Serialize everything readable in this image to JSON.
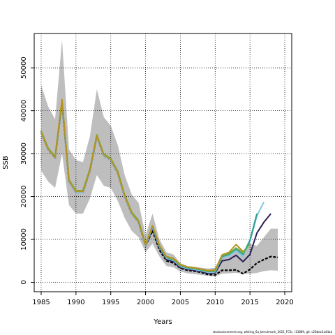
{
  "chart_data": {
    "type": "line",
    "title": "",
    "xlabel": "Years",
    "ylabel": "SSB",
    "xlim": [
      1984,
      2021
    ],
    "ylim": [
      -2200,
      58000
    ],
    "x_ticks": [
      1985,
      1990,
      1995,
      2000,
      2005,
      2010,
      2015,
      2020
    ],
    "y_ticks": [
      0,
      10000,
      20000,
      30000,
      40000,
      50000
    ],
    "grid": true,
    "grid_style": "dotted",
    "band": {
      "color": "#bebebe",
      "years": [
        1985,
        1986,
        1987,
        1988,
        1989,
        1990,
        1991,
        1992,
        1993,
        1994,
        1995,
        1996,
        1997,
        1998,
        1999,
        2000,
        2001,
        2002,
        2003,
        2004,
        2005,
        2006,
        2007,
        2008,
        2009,
        2010,
        2011,
        2012,
        2013,
        2014,
        2015,
        2016,
        2017,
        2018,
        2019
      ],
      "upper": [
        46000,
        41000,
        38000,
        56500,
        31000,
        28500,
        28000,
        34000,
        45000,
        38500,
        36500,
        32000,
        25000,
        20500,
        18500,
        11000,
        16000,
        10000,
        7000,
        6500,
        4500,
        3800,
        3600,
        3400,
        3200,
        3400,
        6500,
        7000,
        8000,
        7500,
        9000,
        8500,
        10500,
        12500,
        12500
      ],
      "lower": [
        26000,
        23500,
        22000,
        30000,
        18000,
        16000,
        16000,
        19500,
        25000,
        22500,
        22000,
        19000,
        15000,
        12000,
        10500,
        7000,
        9000,
        6000,
        3800,
        3500,
        2500,
        2100,
        1900,
        1700,
        1500,
        1400,
        2000,
        2100,
        2200,
        2000,
        2000,
        2200,
        2600,
        2800,
        2700
      ]
    },
    "series": [
      {
        "color": "#000000",
        "dashed": true,
        "years": [
          1985,
          1986,
          1987,
          1988,
          1989,
          1990,
          1991,
          1992,
          1993,
          1994,
          1995,
          1996,
          1997,
          1998,
          1999,
          2000,
          2001,
          2002,
          2003,
          2004,
          2005,
          2006,
          2007,
          2008,
          2009,
          2010,
          2011,
          2012,
          2013,
          2014,
          2015,
          2016,
          2017,
          2018,
          2019
        ],
        "values": [
          35000,
          31000,
          29000,
          42000,
          23500,
          21000,
          21000,
          26000,
          34000,
          29500,
          28500,
          25500,
          20000,
          16000,
          14000,
          8500,
          12000,
          7500,
          5000,
          4500,
          3300,
          2800,
          2600,
          2300,
          1800,
          1700,
          2800,
          2800,
          2900,
          2000,
          3000,
          4500,
          5300,
          6000,
          5800
        ]
      },
      {
        "color": "#2c1f5a",
        "years": [
          1985,
          1986,
          1987,
          1988,
          1989,
          1990,
          1991,
          1992,
          1993,
          1994,
          1995,
          1996,
          1997,
          1998,
          1999,
          2000,
          2001,
          2002,
          2003,
          2004,
          2005,
          2006,
          2007,
          2008,
          2009,
          2010,
          2011,
          2012,
          2013,
          2014,
          2015,
          2016,
          2017,
          2018
        ],
        "values": [
          35000,
          31000,
          29000,
          42000,
          23500,
          21000,
          21000,
          26000,
          34000,
          29500,
          28500,
          25500,
          20000,
          16000,
          14000,
          8500,
          12500,
          8000,
          5300,
          4800,
          3500,
          3000,
          2800,
          2500,
          2100,
          2200,
          5000,
          5300,
          6300,
          4800,
          6500,
          11500,
          14000,
          16000
        ]
      },
      {
        "color": "#7ec8e3",
        "years": [
          1985,
          1986,
          1987,
          1988,
          1989,
          1990,
          1991,
          1992,
          1993,
          1994,
          1995,
          1996,
          1997,
          1998,
          1999,
          2000,
          2001,
          2002,
          2003,
          2004,
          2005,
          2006,
          2007,
          2008,
          2009,
          2010,
          2011,
          2012,
          2013,
          2014,
          2015,
          2016,
          2017
        ],
        "values": [
          35000,
          31000,
          29000,
          42000,
          23500,
          21000,
          21000,
          26000,
          34000,
          29500,
          28500,
          25500,
          20000,
          16000,
          14000,
          8500,
          12800,
          8200,
          5600,
          5100,
          3700,
          3200,
          3000,
          2700,
          2300,
          2400,
          5800,
          6200,
          7400,
          6000,
          9500,
          15500,
          18700
        ]
      },
      {
        "color": "#2e9e8f",
        "years": [
          1985,
          1986,
          1987,
          1988,
          1989,
          1990,
          1991,
          1992,
          1993,
          1994,
          1995,
          1996,
          1997,
          1998,
          1999,
          2000,
          2001,
          2002,
          2003,
          2004,
          2005,
          2006,
          2007,
          2008,
          2009,
          2010,
          2011,
          2012,
          2013,
          2014,
          2015,
          2016
        ],
        "values": [
          35200,
          31200,
          29200,
          42300,
          23800,
          21300,
          21300,
          26300,
          34300,
          29800,
          28800,
          25800,
          20300,
          16300,
          14300,
          8800,
          13000,
          8400,
          5800,
          5300,
          3900,
          3400,
          3200,
          2900,
          2500,
          2600,
          6000,
          6500,
          7800,
          6500,
          9800,
          16000
        ]
      },
      {
        "color": "#6ab04c",
        "years": [
          1985,
          1986,
          1987,
          1988,
          1989,
          1990,
          1991,
          1992,
          1993,
          1994,
          1995,
          1996,
          1997,
          1998,
          1999,
          2000,
          2001,
          2002,
          2003,
          2004,
          2005,
          2006,
          2007,
          2008,
          2009,
          2010,
          2011,
          2012,
          2013,
          2014,
          2015
        ],
        "values": [
          35300,
          31300,
          29300,
          42400,
          23900,
          21400,
          21400,
          26400,
          34400,
          29900,
          28900,
          25900,
          20400,
          16400,
          14400,
          8900,
          13100,
          8500,
          5900,
          5400,
          4000,
          3500,
          3300,
          3000,
          2600,
          2700,
          6200,
          6700,
          8000,
          6800,
          9000
        ]
      },
      {
        "color": "#b8921e",
        "years": [
          1985,
          1986,
          1987,
          1988,
          1989,
          1990,
          1991,
          1992,
          1993,
          1994,
          1995,
          1996,
          1997,
          1998,
          1999,
          2000,
          2001,
          2002,
          2003,
          2004,
          2005,
          2006,
          2007,
          2008,
          2009,
          2010,
          2011,
          2012,
          2013,
          2014
        ],
        "values": [
          35100,
          31100,
          29100,
          42600,
          23700,
          21200,
          21200,
          26200,
          34200,
          29700,
          28700,
          25700,
          20200,
          16200,
          14200,
          8700,
          13200,
          8600,
          6000,
          5600,
          4100,
          3600,
          3400,
          3100,
          2700,
          2900,
          6400,
          7000,
          8800,
          7200
        ]
      }
    ]
  },
  "footer_text": "stockassessment.org, whiting_6a_benchmark_2021_FCSr, r13889, git: c28bdc2a44ad"
}
